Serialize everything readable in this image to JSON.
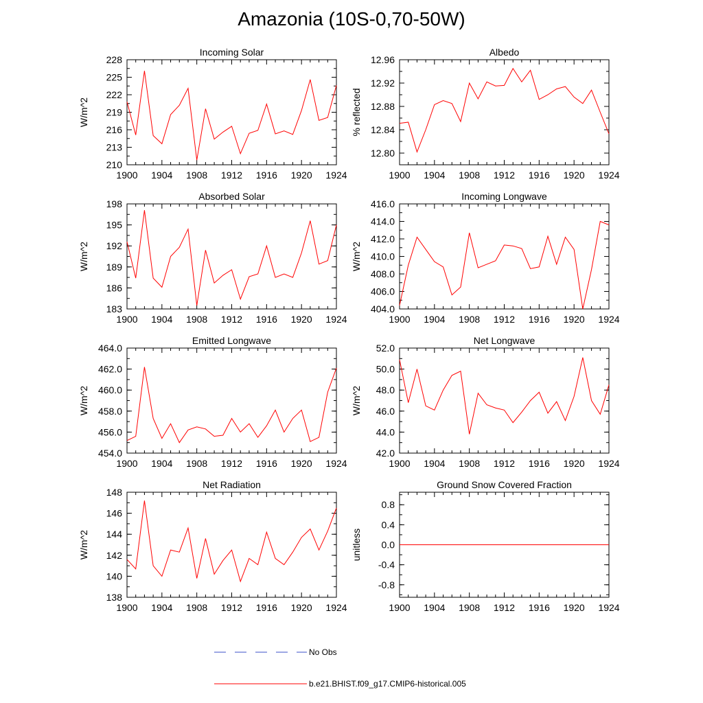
{
  "title": "Amazonia (10S-0,70-50W)",
  "chart_data": [
    {
      "type": "line",
      "title": "Incoming Solar",
      "ylabel": "W/m^2",
      "xlim": [
        1900,
        1924
      ],
      "ylim": [
        210,
        228
      ],
      "xticks": [
        "1900",
        "1904",
        "1908",
        "1912",
        "1916",
        "1920",
        "1924"
      ],
      "yticks": [
        "210",
        "213",
        "216",
        "219",
        "222",
        "225",
        "228"
      ],
      "series": [
        {
          "color": "#ff0000",
          "x": [
            1900,
            1901,
            1902,
            1903,
            1904,
            1905,
            1906,
            1907,
            1908,
            1909,
            1910,
            1911,
            1912,
            1913,
            1914,
            1915,
            1916,
            1917,
            1918,
            1919,
            1920,
            1921,
            1922,
            1923,
            1924
          ],
          "y": [
            220.8,
            215.1,
            226.1,
            215.0,
            213.6,
            218.6,
            220.2,
            223.1,
            210.8,
            219.6,
            214.4,
            215.6,
            216.6,
            211.9,
            215.4,
            215.9,
            220.4,
            215.3,
            215.8,
            215.2,
            219.3,
            224.6,
            217.6,
            218.1,
            223.6
          ]
        }
      ]
    },
    {
      "type": "line",
      "title": "Albedo",
      "ylabel": "% reflected",
      "xlim": [
        1900,
        1924
      ],
      "ylim": [
        12.78,
        12.96
      ],
      "xticks": [
        "1900",
        "1904",
        "1908",
        "1912",
        "1916",
        "1920",
        "1924"
      ],
      "yticks": [
        "12.80",
        "12.84",
        "12.88",
        "12.92",
        "12.96"
      ],
      "series": [
        {
          "color": "#ff0000",
          "x": [
            1900,
            1901,
            1902,
            1903,
            1904,
            1905,
            1906,
            1907,
            1908,
            1909,
            1910,
            1911,
            1912,
            1913,
            1914,
            1915,
            1916,
            1917,
            1918,
            1919,
            1920,
            1921,
            1922,
            1923,
            1924
          ],
          "y": [
            12.851,
            12.853,
            12.802,
            12.84,
            12.883,
            12.89,
            12.885,
            12.854,
            12.92,
            12.893,
            12.922,
            12.915,
            12.916,
            12.945,
            12.922,
            12.942,
            12.892,
            12.9,
            12.91,
            12.914,
            12.896,
            12.885,
            12.908,
            12.87,
            12.833
          ]
        }
      ]
    },
    {
      "type": "line",
      "title": "Absorbed Solar",
      "ylabel": "W/m^2",
      "xlim": [
        1900,
        1924
      ],
      "ylim": [
        183,
        198
      ],
      "xticks": [
        "1900",
        "1904",
        "1908",
        "1912",
        "1916",
        "1920",
        "1924"
      ],
      "yticks": [
        "183",
        "186",
        "189",
        "192",
        "195",
        "198"
      ],
      "series": [
        {
          "color": "#ff0000",
          "x": [
            1900,
            1901,
            1902,
            1903,
            1904,
            1905,
            1906,
            1907,
            1908,
            1909,
            1910,
            1911,
            1912,
            1913,
            1914,
            1915,
            1916,
            1917,
            1918,
            1919,
            1920,
            1921,
            1922,
            1923,
            1924
          ],
          "y": [
            192.6,
            187.4,
            197.1,
            187.4,
            186.1,
            190.5,
            191.8,
            194.4,
            183.5,
            191.4,
            186.7,
            187.8,
            188.6,
            184.4,
            187.6,
            188.0,
            192.0,
            187.5,
            188.0,
            187.5,
            191.0,
            195.6,
            189.4,
            189.9,
            195.0
          ]
        }
      ]
    },
    {
      "type": "line",
      "title": "Incoming Longwave",
      "ylabel": "W/m^2",
      "xlim": [
        1900,
        1924
      ],
      "ylim": [
        404,
        416
      ],
      "xticks": [
        "1900",
        "1904",
        "1908",
        "1912",
        "1916",
        "1920",
        "1924"
      ],
      "yticks": [
        "404.0",
        "406.0",
        "408.0",
        "410.0",
        "412.0",
        "414.0",
        "416.0"
      ],
      "series": [
        {
          "color": "#ff0000",
          "x": [
            1900,
            1901,
            1902,
            1903,
            1904,
            1905,
            1906,
            1907,
            1908,
            1909,
            1910,
            1911,
            1912,
            1913,
            1914,
            1915,
            1916,
            1917,
            1918,
            1919,
            1920,
            1921,
            1922,
            1923,
            1924
          ],
          "y": [
            404.4,
            409.0,
            412.2,
            410.8,
            409.4,
            408.8,
            405.6,
            406.5,
            412.7,
            408.7,
            409.1,
            409.5,
            411.3,
            411.2,
            410.9,
            408.6,
            408.8,
            412.3,
            409.1,
            412.2,
            410.8,
            404.0,
            408.5,
            414.0,
            413.6
          ]
        }
      ]
    },
    {
      "type": "line",
      "title": "Emitted Longwave",
      "ylabel": "W/m^2",
      "xlim": [
        1900,
        1924
      ],
      "ylim": [
        454,
        464
      ],
      "xticks": [
        "1900",
        "1904",
        "1908",
        "1912",
        "1916",
        "1920",
        "1924"
      ],
      "yticks": [
        "454.0",
        "456.0",
        "458.0",
        "460.0",
        "462.0",
        "464.0"
      ],
      "series": [
        {
          "color": "#ff0000",
          "x": [
            1900,
            1901,
            1902,
            1903,
            1904,
            1905,
            1906,
            1907,
            1908,
            1909,
            1910,
            1911,
            1912,
            1913,
            1914,
            1915,
            1916,
            1917,
            1918,
            1919,
            1920,
            1921,
            1922,
            1923,
            1924
          ],
          "y": [
            455.2,
            455.6,
            462.2,
            457.3,
            455.4,
            456.8,
            455.0,
            456.2,
            456.5,
            456.3,
            455.6,
            455.7,
            457.3,
            456.0,
            456.8,
            455.5,
            456.6,
            458.1,
            456.0,
            457.3,
            458.1,
            455.1,
            455.5,
            459.8,
            462.1
          ]
        }
      ]
    },
    {
      "type": "line",
      "title": "Net Longwave",
      "ylabel": "W/m^2",
      "xlim": [
        1900,
        1924
      ],
      "ylim": [
        42,
        52
      ],
      "xticks": [
        "1900",
        "1904",
        "1908",
        "1912",
        "1916",
        "1920",
        "1924"
      ],
      "yticks": [
        "42.0",
        "44.0",
        "46.0",
        "48.0",
        "50.0",
        "52.0"
      ],
      "series": [
        {
          "color": "#ff0000",
          "x": [
            1900,
            1901,
            1902,
            1903,
            1904,
            1905,
            1906,
            1907,
            1908,
            1909,
            1910,
            1911,
            1912,
            1913,
            1914,
            1915,
            1916,
            1917,
            1918,
            1919,
            1920,
            1921,
            1922,
            1923,
            1924
          ],
          "y": [
            50.9,
            46.8,
            50.0,
            46.5,
            46.1,
            48.0,
            49.4,
            49.8,
            43.8,
            47.7,
            46.6,
            46.3,
            46.1,
            44.9,
            45.9,
            47.0,
            47.8,
            45.8,
            46.9,
            45.1,
            47.4,
            51.1,
            47.0,
            45.7,
            48.5
          ]
        }
      ]
    },
    {
      "type": "line",
      "title": "Net Radiation",
      "ylabel": "W/m^2",
      "xlim": [
        1900,
        1924
      ],
      "ylim": [
        138,
        148
      ],
      "xticks": [
        "1900",
        "1904",
        "1908",
        "1912",
        "1916",
        "1920",
        "1924"
      ],
      "yticks": [
        "138",
        "140",
        "142",
        "144",
        "146",
        "148"
      ],
      "series": [
        {
          "color": "#ff0000",
          "x": [
            1900,
            1901,
            1902,
            1903,
            1904,
            1905,
            1906,
            1907,
            1908,
            1909,
            1910,
            1911,
            1912,
            1913,
            1914,
            1915,
            1916,
            1917,
            1918,
            1919,
            1920,
            1921,
            1922,
            1923,
            1924
          ],
          "y": [
            141.6,
            140.7,
            147.2,
            141.0,
            140.0,
            142.5,
            142.3,
            144.6,
            139.8,
            143.6,
            140.2,
            141.5,
            142.5,
            139.5,
            141.7,
            141.1,
            144.2,
            141.7,
            141.1,
            142.3,
            143.7,
            144.5,
            142.5,
            144.3,
            146.5
          ]
        }
      ]
    },
    {
      "type": "line",
      "title": "Ground Snow Covered Fraction",
      "ylabel": "unitless",
      "xlim": [
        1900,
        1924
      ],
      "ylim": [
        -1.05,
        1.05
      ],
      "xticks": [
        "1900",
        "1904",
        "1908",
        "1912",
        "1916",
        "1920",
        "1924"
      ],
      "yticks": [
        "-0.8",
        "-0.4",
        "0.0",
        "0.4",
        "0.8"
      ],
      "series": [
        {
          "color": "#ff0000",
          "x": [
            1900,
            1924
          ],
          "y": [
            0,
            0
          ]
        }
      ]
    }
  ],
  "legend": [
    {
      "label": "No Obs",
      "color": "#3b4fc8",
      "style": "dashed"
    },
    {
      "label": "b.e21.BHIST.f09_g17.CMIP6-historical.005",
      "color": "#ff0000",
      "style": "solid"
    }
  ]
}
